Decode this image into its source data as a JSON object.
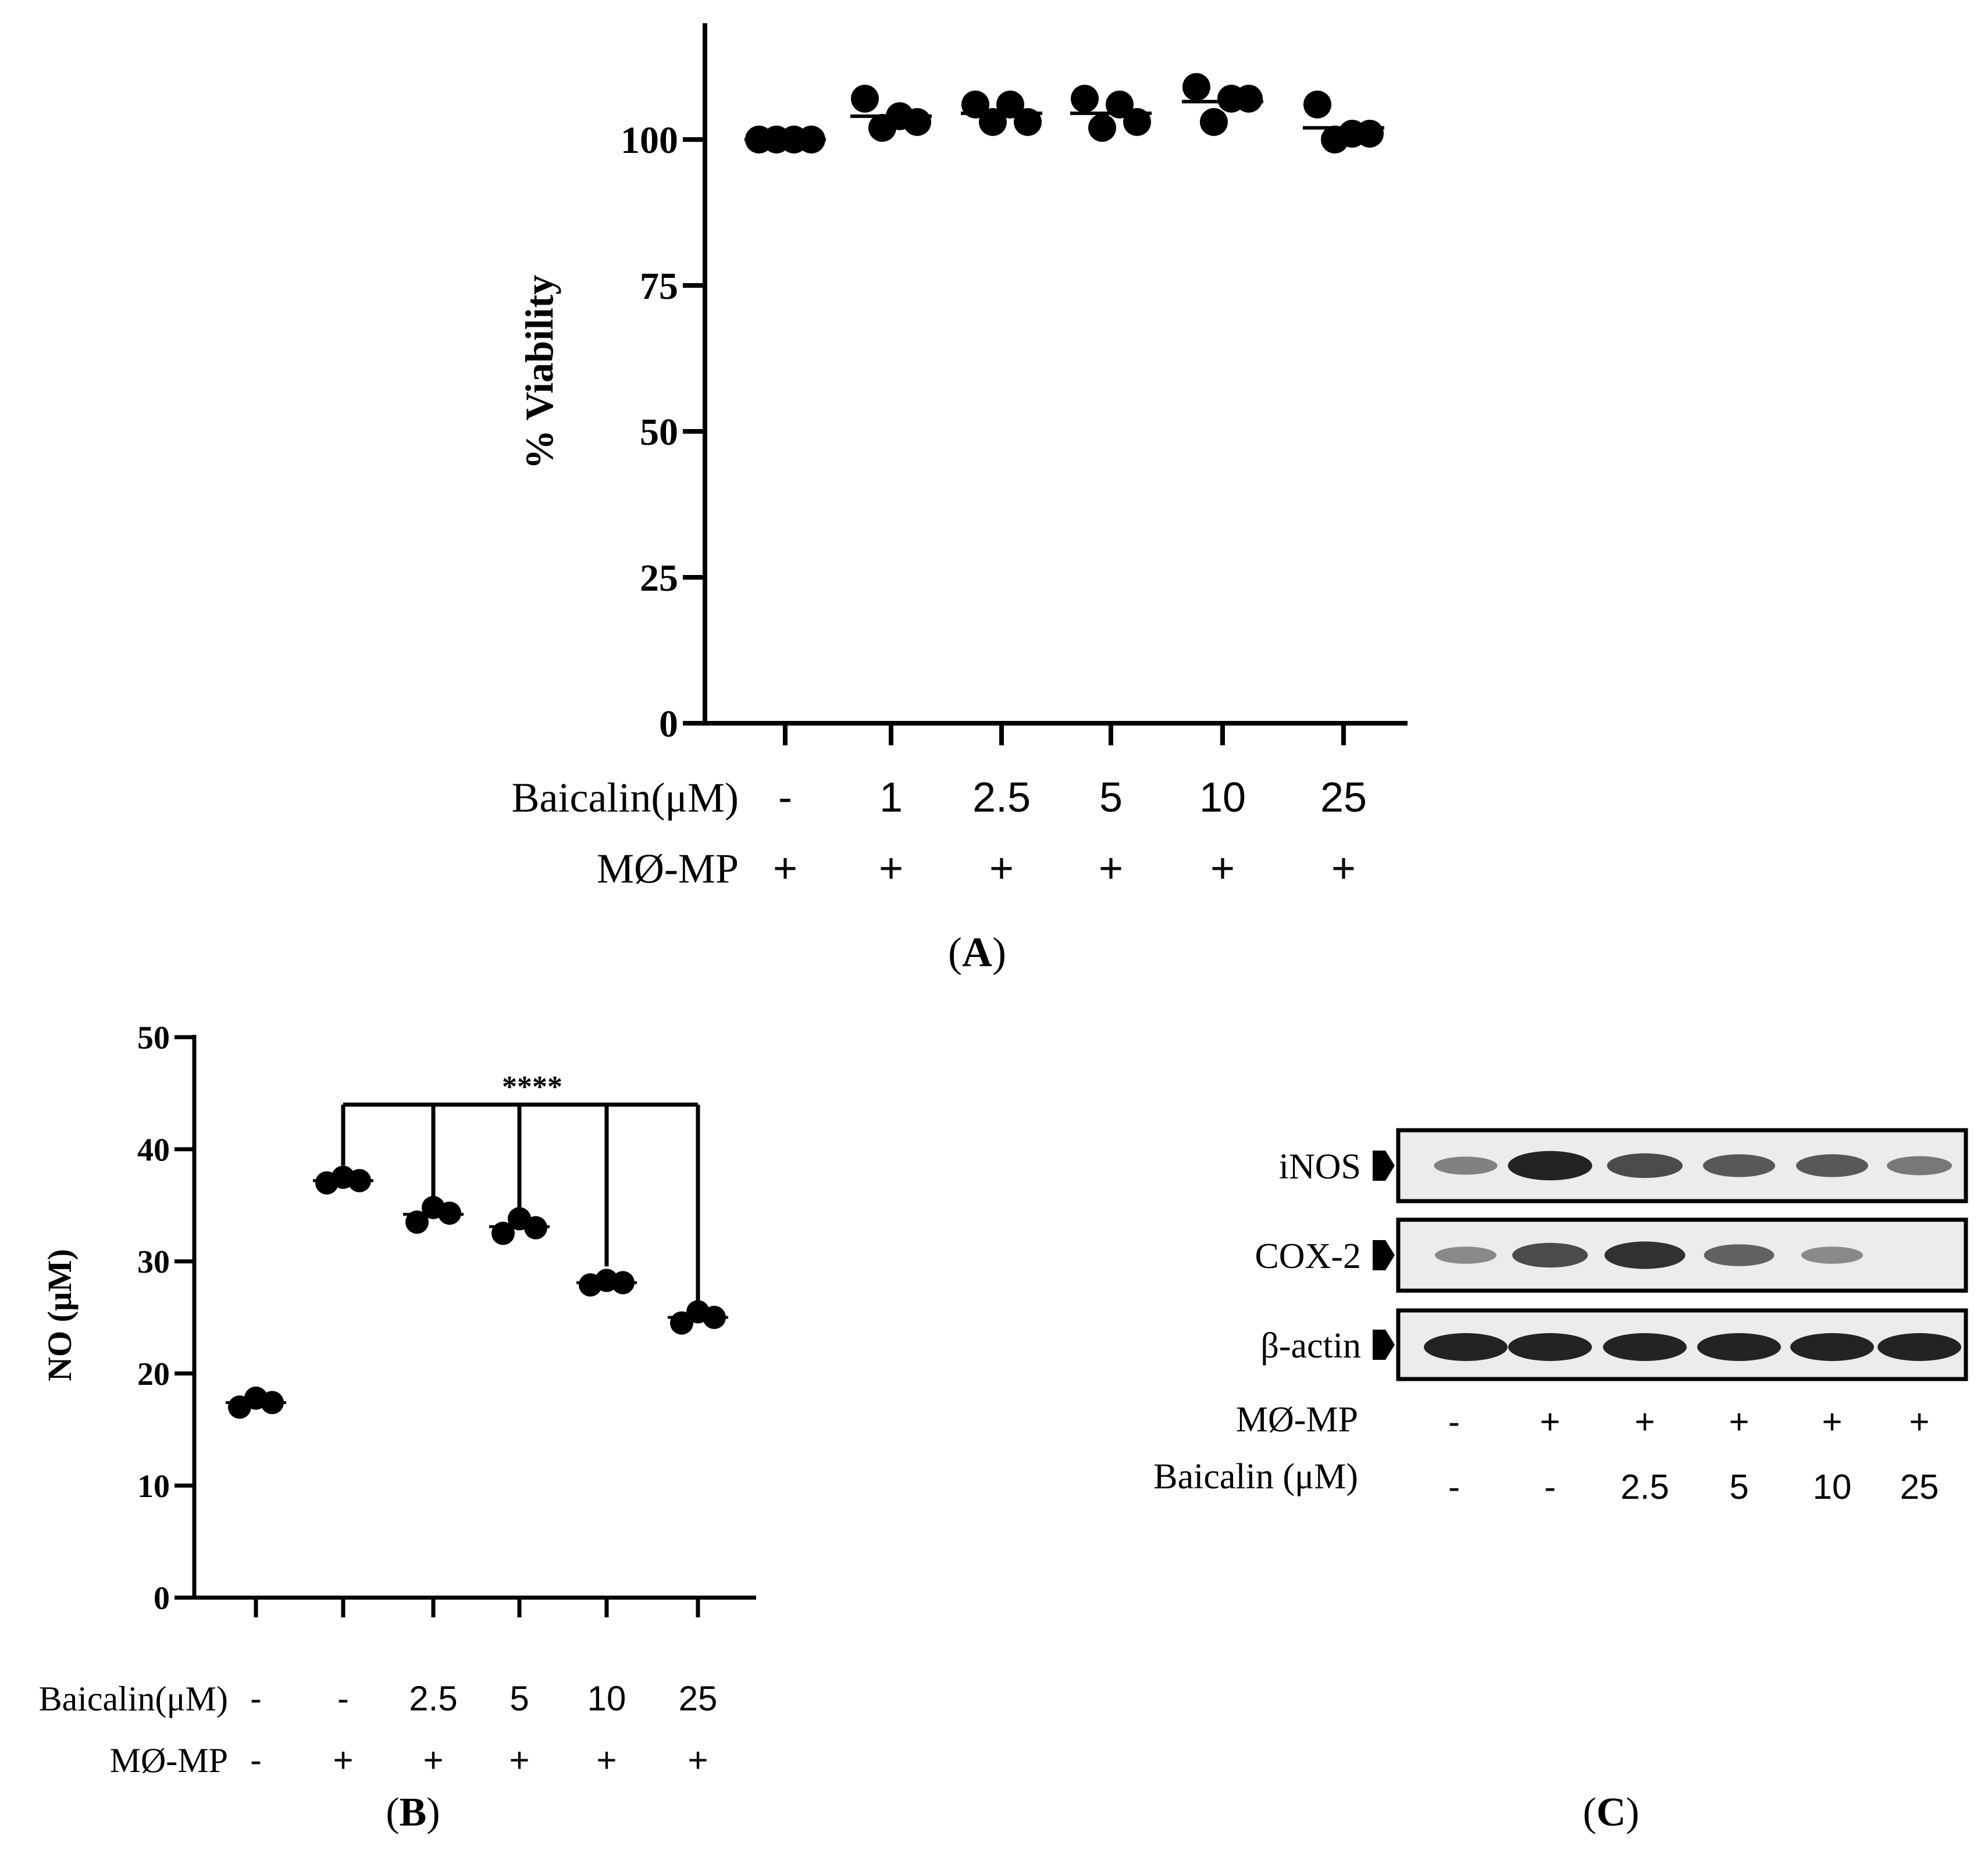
{
  "chart_data": [
    {
      "panel": "A",
      "type": "scatter",
      "panel_label": "A",
      "ylabel": "% Viability",
      "ylim": [
        0,
        120
      ],
      "yticks": [
        0,
        25,
        50,
        75,
        100
      ],
      "grid": false,
      "categories": [
        "-",
        "1",
        "2.5",
        "5",
        "10",
        "25"
      ],
      "condition_rows": [
        {
          "label": "Baicalin(μM)",
          "values": [
            "-",
            "1",
            "2.5",
            "5",
            "10",
            "25"
          ]
        },
        {
          "label": "MØ-MP",
          "values": [
            "+",
            "+",
            "+",
            "+",
            "+",
            "+"
          ]
        }
      ],
      "points": [
        [
          100,
          100,
          100,
          100
        ],
        [
          107,
          102,
          104,
          103
        ],
        [
          106,
          103,
          106,
          103
        ],
        [
          107,
          102,
          106,
          103
        ],
        [
          109,
          103,
          107,
          107
        ],
        [
          106,
          100,
          101,
          101
        ]
      ],
      "means": [
        100,
        104,
        104.5,
        104.5,
        106.5,
        102
      ]
    },
    {
      "panel": "B",
      "type": "scatter",
      "panel_label": "B",
      "ylabel": "NO (μM)",
      "ylim": [
        0,
        50
      ],
      "yticks": [
        0,
        10,
        20,
        30,
        40,
        50
      ],
      "grid": false,
      "categories": [
        "-",
        "-",
        "2.5",
        "5",
        "10",
        "25"
      ],
      "condition_rows": [
        {
          "label": "Baicalin(μM)",
          "values": [
            "-",
            "-",
            "2.5",
            "5",
            "10",
            "25"
          ]
        },
        {
          "label": "MØ-MP",
          "values": [
            "-",
            "+",
            "+",
            "+",
            "+",
            "+"
          ]
        }
      ],
      "points": [
        [
          17.0,
          17.8,
          17.4
        ],
        [
          37.0,
          37.5,
          37.2
        ],
        [
          33.5,
          34.8,
          34.3
        ],
        [
          32.5,
          33.8,
          33.0
        ],
        [
          27.9,
          28.3,
          28.1
        ],
        [
          24.5,
          25.5,
          25.0
        ]
      ],
      "means": [
        17.4,
        37.2,
        34.2,
        33.1,
        28.1,
        25.0
      ],
      "significance": {
        "label": "****",
        "from": 1,
        "to": [
          2,
          3,
          4,
          5
        ]
      }
    }
  ],
  "western_blot": {
    "panel_label": "C",
    "bands": [
      "iNOS",
      "COX-2",
      "β-actin"
    ],
    "intensity": {
      "iNOS": [
        0.35,
        0.95,
        0.7,
        0.6,
        0.6,
        0.4
      ],
      "COX-2": [
        0.3,
        0.7,
        0.85,
        0.55,
        0.3,
        0.0
      ],
      "β-actin": [
        0.95,
        0.95,
        0.95,
        0.95,
        0.95,
        0.95
      ]
    },
    "condition_rows": [
      {
        "label": "MØ-MP",
        "values": [
          "-",
          "+",
          "+",
          "+",
          "+",
          "+"
        ]
      },
      {
        "label": "Baicalin (μM)",
        "values": [
          "-",
          "-",
          "2.5",
          "5",
          "10",
          "25"
        ]
      }
    ]
  },
  "colors": {
    "ink": "#000000",
    "blot_bg": "#ececec",
    "band": "#1a1a1a"
  }
}
